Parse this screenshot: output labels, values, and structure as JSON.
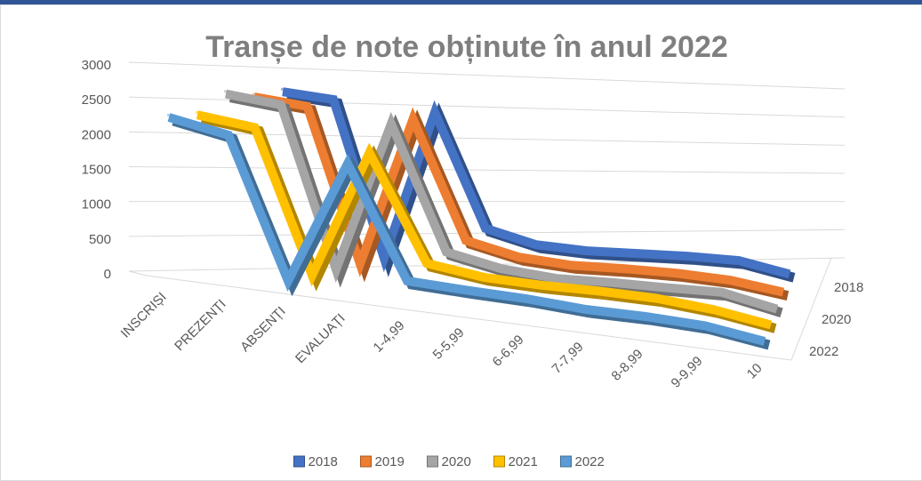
{
  "chart_data": {
    "type": "line3d",
    "title": "Tranșe de note obținute în anul 2022",
    "categories": [
      "INSCRIȘI",
      "PREZENȚI",
      "ABSENȚI",
      "EVALUAȚI",
      "1-4,99",
      "5-5,99",
      "6-6,99",
      "7-7,99",
      "8-8,99",
      "9-9,99",
      "10"
    ],
    "series": [
      {
        "name": "2018",
        "color": "#4472c4",
        "values": [
          2950,
          2850,
          100,
          2700,
          700,
          450,
          380,
          370,
          360,
          320,
          120
        ]
      },
      {
        "name": "2019",
        "color": "#ed7d31",
        "values": [
          2750,
          2650,
          100,
          2550,
          600,
          380,
          300,
          300,
          280,
          220,
          80
        ]
      },
      {
        "name": "2020",
        "color": "#a5a5a5",
        "values": [
          2700,
          2600,
          100,
          2450,
          520,
          330,
          250,
          260,
          250,
          250,
          60
        ]
      },
      {
        "name": "2021",
        "color": "#ffc000",
        "values": [
          2300,
          2200,
          100,
          2000,
          450,
          330,
          300,
          300,
          280,
          200,
          60
        ]
      },
      {
        "name": "2022",
        "color": "#5b9bd5",
        "values": [
          2200,
          2050,
          100,
          1850,
          300,
          270,
          250,
          200,
          200,
          170,
          50
        ]
      }
    ],
    "ylim": [
      0,
      3000
    ],
    "yticks": [
      0,
      500,
      1000,
      1500,
      2000,
      2500,
      3000
    ],
    "grid": true,
    "legend": "bottom"
  }
}
